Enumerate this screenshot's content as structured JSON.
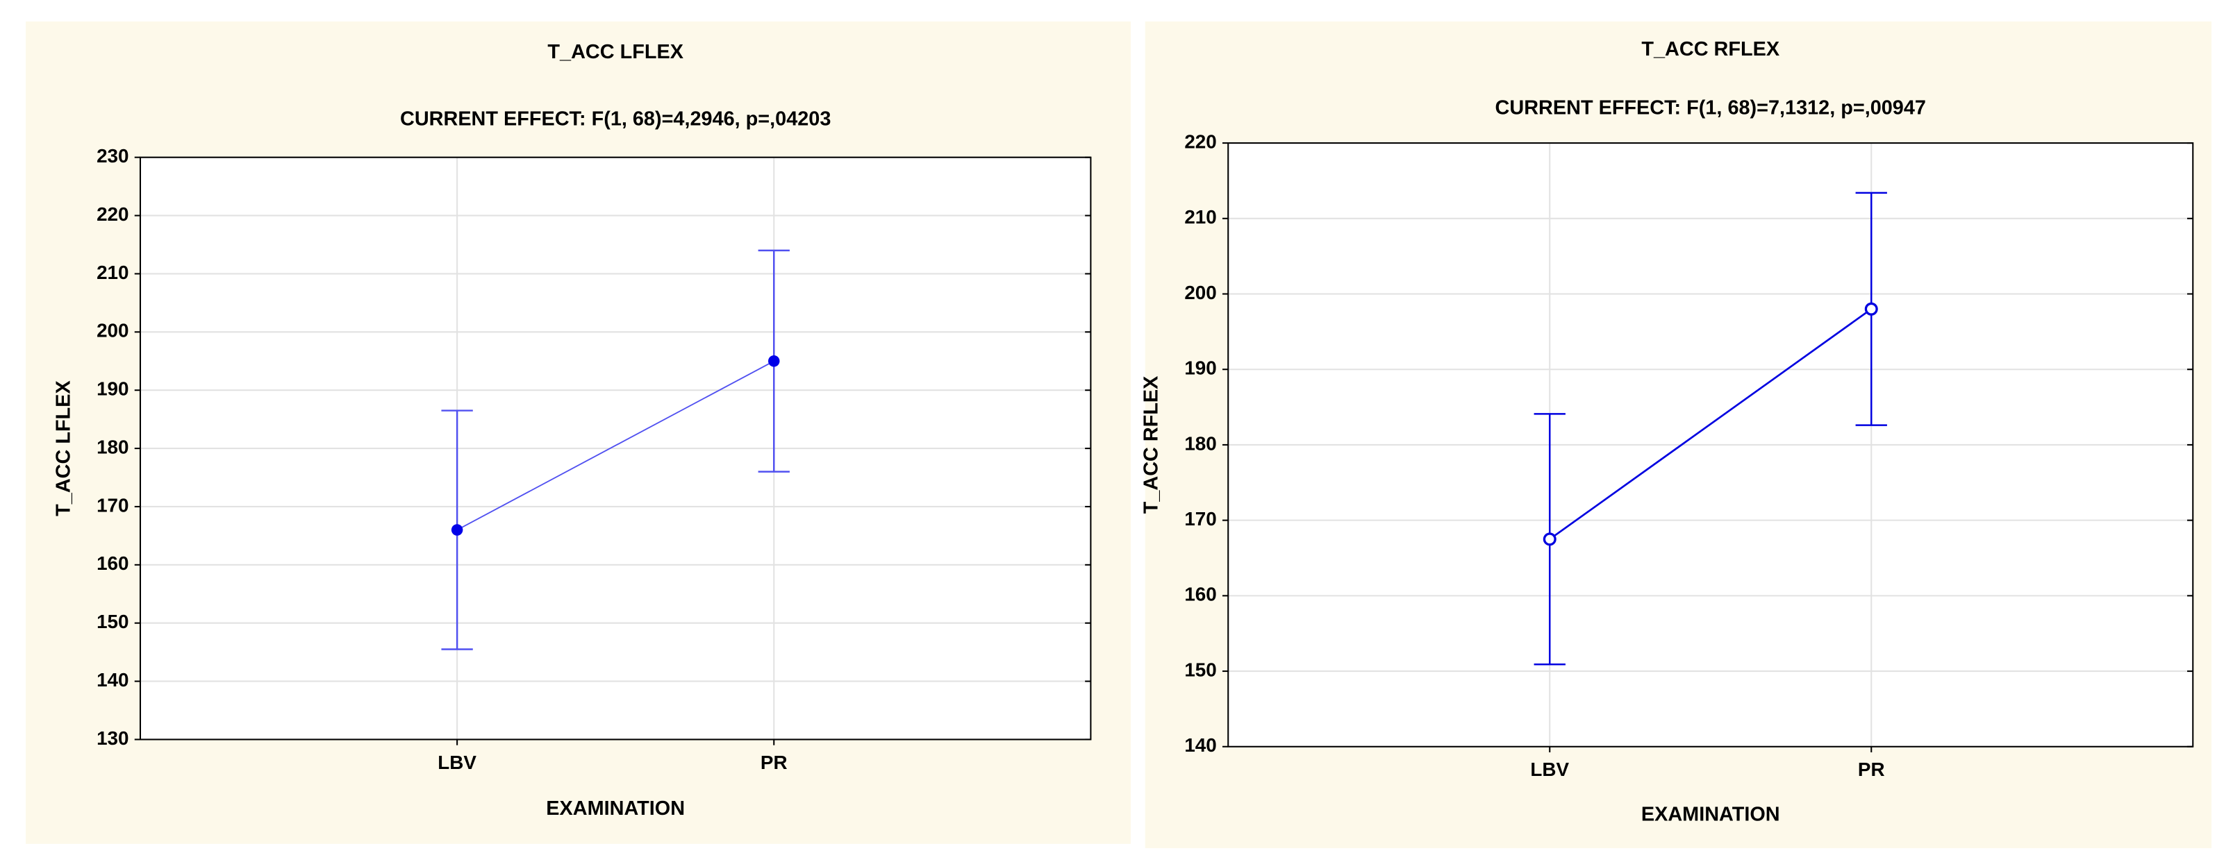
{
  "chart_data": [
    {
      "type": "line",
      "title": "T_ACC LFLEX",
      "subtitle": "CURRENT EFFECT: F(1, 68)=4,2946, p=,04203",
      "xlabel": "EXAMINATION",
      "ylabel": "T_ACC LFLEX",
      "categories": [
        "LBV",
        "PR"
      ],
      "values": [
        166,
        195
      ],
      "errors": [
        20.5,
        19
      ],
      "color": "#5050f0",
      "marker": "filled",
      "grid": true,
      "ylim": [
        130,
        230
      ],
      "yticks": [
        130,
        140,
        150,
        160,
        170,
        180,
        190,
        200,
        210,
        220,
        230
      ]
    },
    {
      "type": "line",
      "title": "T_ACC RFLEX",
      "subtitle": "CURRENT EFFECT: F(1, 68)=7,1312, p=,00947",
      "xlabel": "EXAMINATION",
      "ylabel": "T_ACC RFLEX",
      "categories": [
        "LBV",
        "PR"
      ],
      "values": [
        167.5,
        198
      ],
      "errors": [
        16.6,
        15.4
      ],
      "color": "#0000e0",
      "marker": "open",
      "grid": true,
      "ylim": [
        140,
        220
      ],
      "yticks": [
        140,
        150,
        160,
        170,
        180,
        190,
        200,
        210,
        220
      ]
    }
  ]
}
